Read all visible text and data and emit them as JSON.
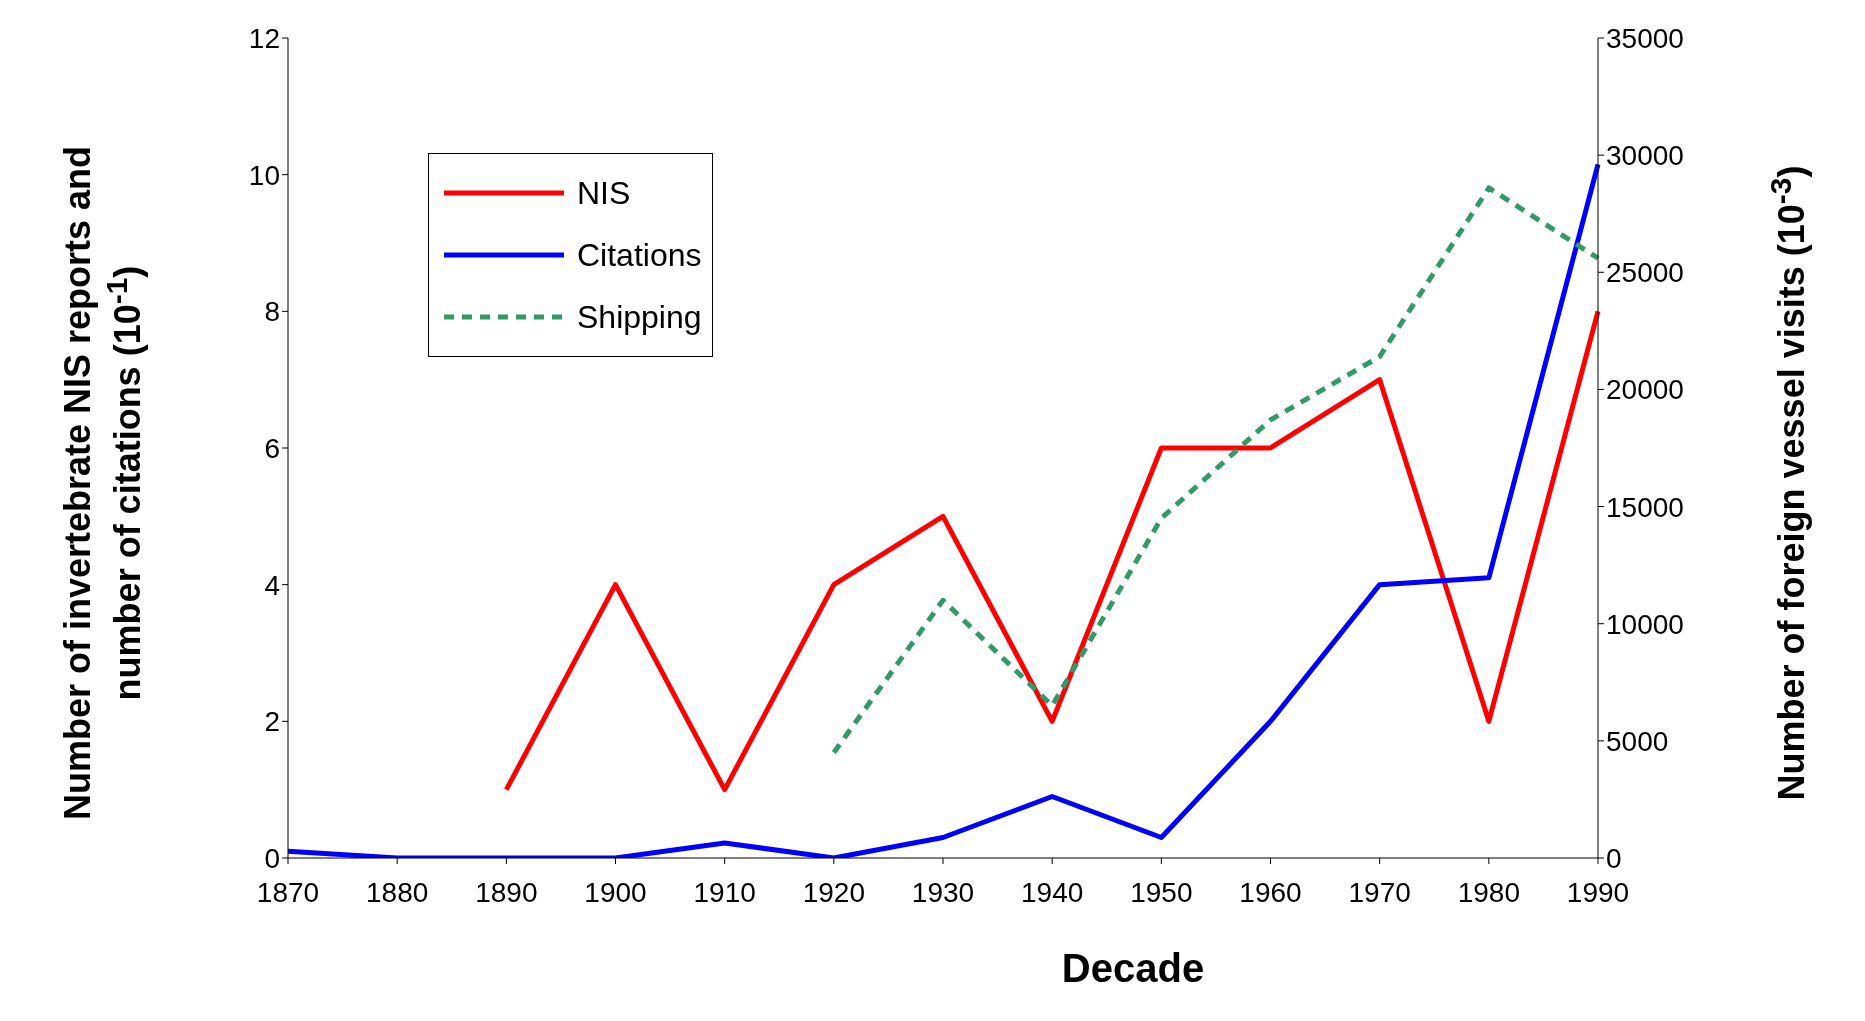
{
  "chart_data": {
    "type": "line",
    "xlabel": "Decade",
    "ylabel": "Number of invertebrate NIS reports and number of citations (10$^{-1}$)",
    "y2label": "Number of foreign vessel visits (10$^{-3}$)",
    "categories": [
      "1870",
      "1880",
      "1890",
      "1900",
      "1910",
      "1920",
      "1930",
      "1940",
      "1950",
      "1960",
      "1970",
      "1980",
      "1990"
    ],
    "series": [
      {
        "name": "NIS",
        "color": "#ff0000",
        "line_style": "solid",
        "values": [
          null,
          null,
          1,
          4,
          1,
          4,
          5,
          2,
          6,
          6,
          7,
          2,
          8
        ]
      },
      {
        "name": "Citations",
        "color": "#0000ff",
        "line_style": "solid",
        "values": [
          0.1,
          0,
          0,
          0,
          0.22,
          0,
          0.3,
          0.9,
          0.3,
          2,
          4,
          4.1,
          10.15
        ]
      },
      {
        "name": "Shipping",
        "color": "#339966",
        "line_style": "dashed",
        "axis": "y2",
        "values": [
          null,
          null,
          null,
          null,
          null,
          4500,
          11000,
          6500,
          14500,
          18700,
          21400,
          28600,
          25600
        ]
      }
    ],
    "ylim": [
      0,
      12
    ],
    "yticks": [
      0,
      2,
      4,
      6,
      8,
      10,
      12
    ],
    "y2lim": [
      0,
      35000
    ],
    "y2ticks": [
      0,
      5000,
      10000,
      15000,
      20000,
      25000,
      30000,
      35000
    ],
    "legend": "top left",
    "marker": "none"
  }
}
